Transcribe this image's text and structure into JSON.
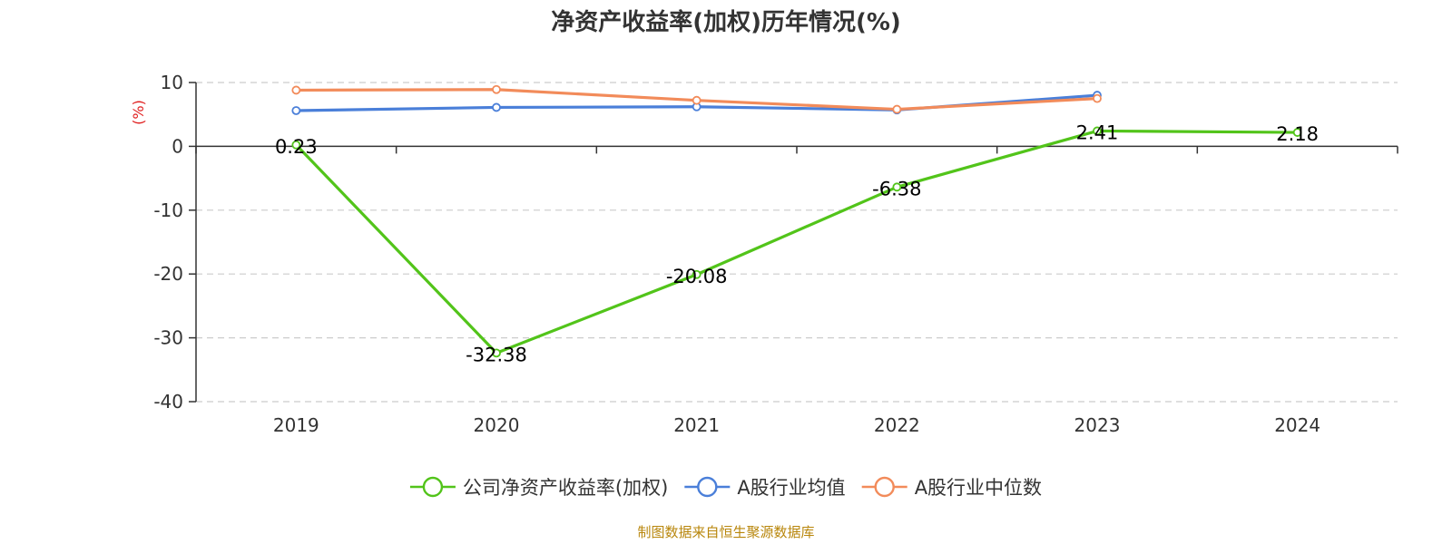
{
  "chart_data": {
    "type": "line",
    "title": "净资产收益率(加权)历年情况(%)",
    "ylabel": "(%)",
    "xlabel": "",
    "categories": [
      "2019",
      "2020",
      "2021",
      "2022",
      "2023",
      "2024"
    ],
    "ylim": [
      -40,
      10
    ],
    "yticks": [
      10,
      0,
      -10,
      -20,
      -30,
      -40
    ],
    "grid": true,
    "legend_position": "bottom",
    "series": [
      {
        "name": "公司净资产收益率(加权)",
        "color": "#52c41a",
        "values": [
          0.23,
          -32.38,
          -20.08,
          -6.38,
          2.41,
          2.18
        ],
        "labels": [
          "0.23",
          "-32.38",
          "-20.08",
          "-6.38",
          "2.41",
          "2.18"
        ]
      },
      {
        "name": "A股行业均值",
        "color": "#4a7fd9",
        "values": [
          5.6,
          6.1,
          6.2,
          5.7,
          8.0,
          null
        ]
      },
      {
        "name": "A股行业中位数",
        "color": "#f28b5a",
        "values": [
          8.8,
          8.9,
          7.2,
          5.8,
          7.5,
          null
        ]
      }
    ]
  },
  "source": "制图数据来自恒生聚源数据库"
}
